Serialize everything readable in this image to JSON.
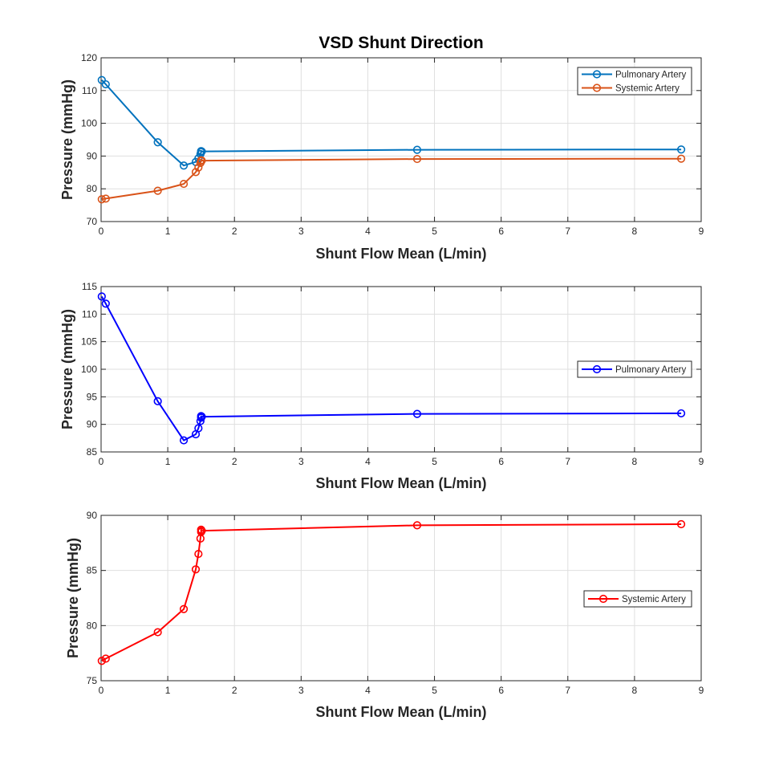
{
  "figure_title": "VSD Shunt Direction",
  "colors": {
    "pulmonary_top": "#0072BD",
    "systemic_top": "#D95319",
    "pulmonary_mid": "#0000FF",
    "systemic_bot": "#FF0000",
    "grid": "#dfdfdf",
    "axis": "#262626"
  },
  "chart_data": [
    {
      "type": "line",
      "title": "VSD Shunt Direction",
      "xlabel": "Shunt Flow Mean (L/min)",
      "ylabel": "Pressure (mmHg)",
      "xlim": [
        0,
        9
      ],
      "ylim": [
        70,
        120
      ],
      "xticks": [
        0,
        1,
        2,
        3,
        4,
        5,
        6,
        7,
        8,
        9
      ],
      "yticks": [
        70,
        80,
        90,
        100,
        110,
        120
      ],
      "grid": true,
      "legend": "top-right",
      "series": [
        {
          "name": "Pulmonary Artery",
          "color": "#0072BD",
          "x": [
            0.01,
            0.07,
            0.85,
            1.24,
            1.42,
            1.46,
            1.49,
            1.5,
            1.5,
            1.51,
            4.74,
            8.7
          ],
          "y": [
            113.2,
            111.9,
            94.2,
            87.1,
            88.2,
            89.3,
            90.6,
            91.2,
            91.5,
            91.4,
            91.9,
            92.0
          ]
        },
        {
          "name": "Systemic Artery",
          "color": "#D95319",
          "x": [
            0.01,
            0.07,
            0.85,
            1.24,
            1.42,
            1.46,
            1.49,
            1.5,
            1.5,
            1.51,
            4.74,
            8.7
          ],
          "y": [
            76.8,
            77.0,
            79.4,
            81.5,
            85.1,
            86.5,
            87.9,
            88.5,
            88.7,
            88.6,
            89.1,
            89.2
          ]
        }
      ]
    },
    {
      "type": "line",
      "xlabel": "Shunt Flow Mean (L/min)",
      "ylabel": "Pressure (mmHg)",
      "xlim": [
        0,
        9
      ],
      "ylim": [
        85,
        115
      ],
      "xticks": [
        0,
        1,
        2,
        3,
        4,
        5,
        6,
        7,
        8,
        9
      ],
      "yticks": [
        85,
        90,
        95,
        100,
        105,
        110,
        115
      ],
      "grid": true,
      "legend": "right",
      "series": [
        {
          "name": "Pulmonary Artery",
          "color": "#0000FF",
          "x": [
            0.01,
            0.07,
            0.85,
            1.24,
            1.42,
            1.46,
            1.49,
            1.5,
            1.5,
            1.51,
            4.74,
            8.7
          ],
          "y": [
            113.2,
            111.9,
            94.2,
            87.1,
            88.2,
            89.3,
            90.6,
            91.2,
            91.5,
            91.4,
            91.9,
            92.0
          ]
        }
      ]
    },
    {
      "type": "line",
      "xlabel": "Shunt Flow Mean (L/min)",
      "ylabel": "Pressure (mmHg)",
      "xlim": [
        0,
        9
      ],
      "ylim": [
        75,
        90
      ],
      "xticks": [
        0,
        1,
        2,
        3,
        4,
        5,
        6,
        7,
        8,
        9
      ],
      "yticks": [
        75,
        80,
        85,
        90
      ],
      "grid": true,
      "legend": "right",
      "series": [
        {
          "name": "Systemic Artery",
          "color": "#FF0000",
          "x": [
            0.01,
            0.07,
            0.85,
            1.24,
            1.42,
            1.46,
            1.49,
            1.5,
            1.5,
            1.51,
            4.74,
            8.7
          ],
          "y": [
            76.8,
            77.0,
            79.4,
            81.5,
            85.1,
            86.5,
            87.9,
            88.5,
            88.7,
            88.6,
            89.1,
            89.2
          ]
        }
      ]
    }
  ]
}
